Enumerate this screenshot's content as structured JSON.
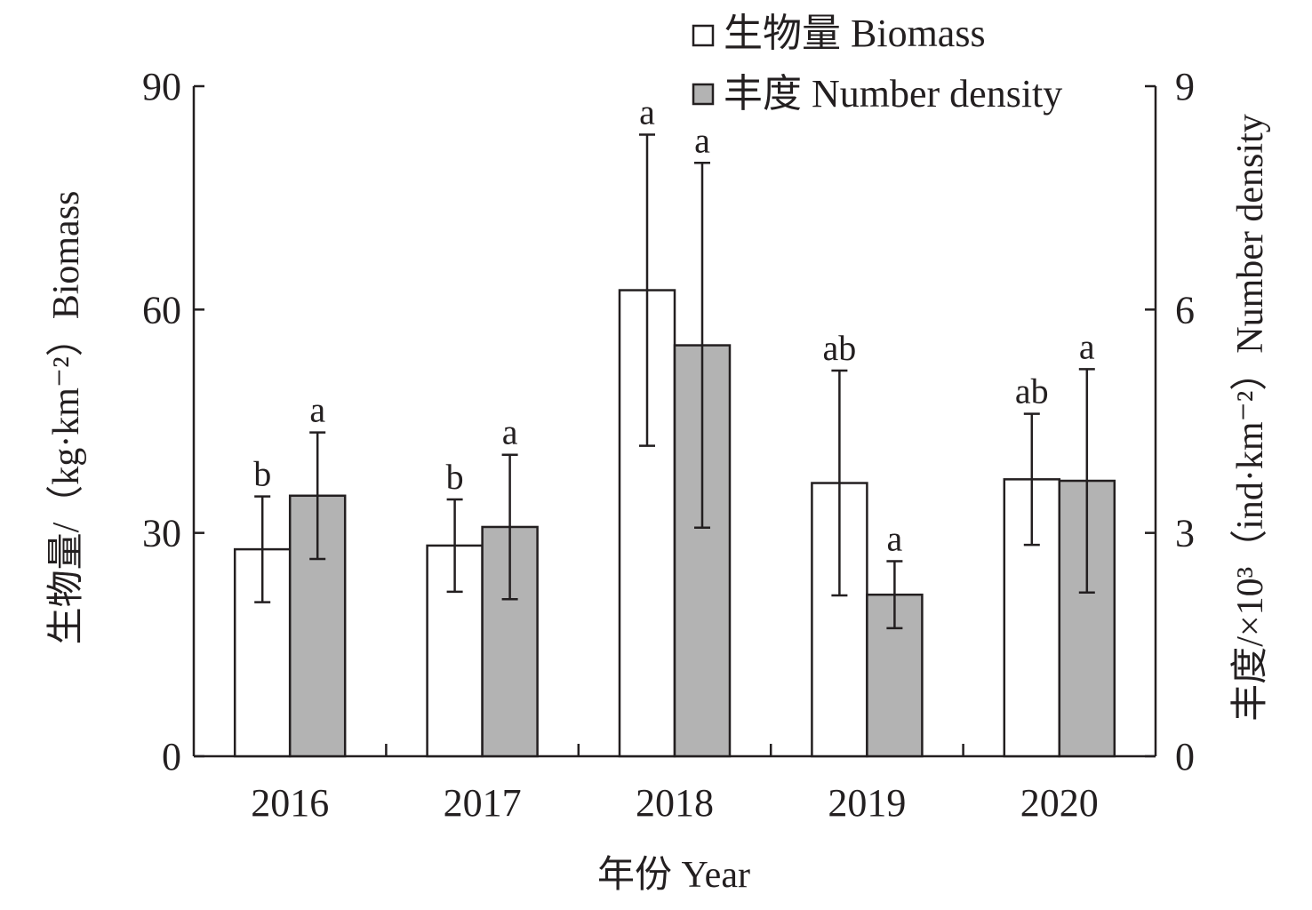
{
  "chart_data": {
    "type": "bar",
    "categories": [
      "2016",
      "2017",
      "2018",
      "2019",
      "2020"
    ],
    "series": [
      {
        "name": "生物量 Biomass",
        "axis": "left",
        "color": "#ffffff",
        "values": [
          27.8,
          28.3,
          62.6,
          36.7,
          37.2
        ],
        "error": [
          7.1,
          6.2,
          20.9,
          15.1,
          8.8
        ],
        "significance": [
          "b",
          "b",
          "a",
          "ab",
          "ab"
        ]
      },
      {
        "name": "丰度 Number density",
        "axis": "right",
        "color": "#b3b3b3",
        "values": [
          3.5,
          3.08,
          5.52,
          2.17,
          3.7
        ],
        "error": [
          0.85,
          0.97,
          2.45,
          0.45,
          1.5
        ],
        "significance": [
          "a",
          "a",
          "a",
          "a",
          "a"
        ]
      }
    ],
    "y_left": {
      "label": "生物量/（kg·km⁻²）Biomass",
      "ylim": [
        0,
        90
      ],
      "ticks": [
        "0",
        "30",
        "60",
        "90"
      ]
    },
    "y_right": {
      "label": "丰度/×10³（ind·km⁻²）Number density",
      "ylim": [
        0,
        9
      ],
      "ticks": [
        "0",
        "3",
        "6",
        "9"
      ]
    },
    "xlabel": "年份 Year",
    "legend_position": "top-right",
    "grid": false
  }
}
